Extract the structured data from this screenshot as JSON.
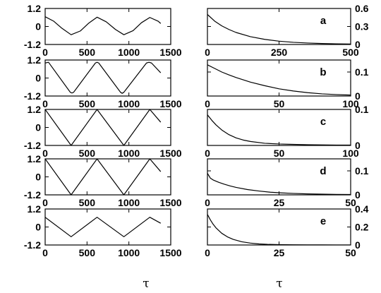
{
  "chart_data": {
    "type": "line",
    "x_axis_titles": [
      "τ",
      "τ"
    ],
    "panels": [
      {
        "id": "left-a",
        "row": 0,
        "col": 0,
        "x_range": [
          0,
          1500
        ],
        "y_range": [
          -1.2,
          1.2
        ],
        "x_ticks": [
          "0",
          "500",
          "1000",
          "1500"
        ],
        "y_ticks": [
          "1.2",
          "0",
          "-1.2"
        ],
        "y_axis_side": "left",
        "series": [
          {
            "x": [
              0,
              100,
              200,
              310,
              420,
              520,
              620,
              730,
              840,
              940,
              1050,
              1150,
              1250,
              1350,
              1380
            ],
            "y": [
              0.65,
              0.36,
              -0.12,
              -0.55,
              -0.3,
              0.22,
              0.62,
              0.31,
              -0.2,
              -0.55,
              -0.28,
              0.25,
              0.6,
              0.35,
              0.2
            ]
          }
        ]
      },
      {
        "id": "right-a",
        "row": 0,
        "col": 1,
        "letter": "a",
        "x_range": [
          0,
          500
        ],
        "y_range": [
          0,
          0.6
        ],
        "x_ticks": [
          "0",
          "250",
          "500"
        ],
        "y_ticks": [
          "0.6",
          "0.3",
          "0"
        ],
        "y_axis_side": "right",
        "series": [
          {
            "x": [
              0,
              25,
              50,
              75,
              100,
              150,
              200,
              250,
              300,
              350,
              400,
              450,
              500
            ],
            "y": [
              0.5,
              0.39,
              0.31,
              0.25,
              0.2,
              0.13,
              0.085,
              0.055,
              0.036,
              0.024,
              0.016,
              0.011,
              0.008
            ]
          }
        ]
      },
      {
        "id": "left-b",
        "row": 1,
        "col": 0,
        "x_range": [
          0,
          1500
        ],
        "y_range": [
          -1.2,
          1.2
        ],
        "x_ticks": [
          "0",
          "500",
          "1000",
          "1500"
        ],
        "y_ticks": [
          "1.2",
          "0",
          "-1.2"
        ],
        "y_axis_side": "left",
        "series": [
          {
            "x": [
              0,
              40,
              300,
              320,
              340,
              600,
              620,
              640,
              900,
              920,
              940,
              1210,
              1240,
              1270,
              1380
            ],
            "y": [
              1.0,
              1.05,
              -0.95,
              -1.0,
              -0.95,
              1.0,
              1.05,
              1.0,
              -0.95,
              -1.02,
              -0.95,
              1.0,
              1.05,
              1.0,
              0.35
            ]
          }
        ]
      },
      {
        "id": "right-b",
        "row": 1,
        "col": 1,
        "letter": "b",
        "x_range": [
          0,
          100
        ],
        "y_range": [
          0,
          0.15
        ],
        "x_ticks": [
          "0",
          "50",
          "100"
        ],
        "y_ticks": [
          "0.1",
          "0"
        ],
        "y_axis_side": "right",
        "series": [
          {
            "x": [
              0,
              5,
              10,
              15,
              20,
              30,
              40,
              50,
              60,
              70,
              80,
              90,
              100
            ],
            "y": [
              0.13,
              0.115,
              0.1,
              0.088,
              0.077,
              0.058,
              0.043,
              0.03,
              0.021,
              0.014,
              0.009,
              0.006,
              0.004
            ]
          }
        ]
      },
      {
        "id": "left-c",
        "row": 2,
        "col": 0,
        "x_range": [
          0,
          1500
        ],
        "y_range": [
          -1.2,
          1.2
        ],
        "x_ticks": [
          "0",
          "500",
          "1000",
          "1500"
        ],
        "y_ticks": [
          "1.2",
          "0",
          "-1.2"
        ],
        "y_axis_side": "left",
        "series": [
          {
            "x": [
              0,
              310,
              620,
              940,
              1250,
              1380
            ],
            "y": [
              1.2,
              -1.2,
              1.2,
              -1.2,
              1.2,
              0.35
            ]
          }
        ]
      },
      {
        "id": "right-c",
        "row": 2,
        "col": 1,
        "letter": "c",
        "x_range": [
          0,
          100
        ],
        "y_range": [
          0,
          0.1
        ],
        "x_ticks": [
          "0",
          "50",
          "100"
        ],
        "y_ticks": [
          "0.1",
          "0"
        ],
        "y_axis_side": "right",
        "series": [
          {
            "x": [
              0,
              3,
              6,
              10,
              15,
              20,
              25,
              30,
              40,
              50,
              60,
              70,
              80,
              90,
              100
            ],
            "y": [
              0.085,
              0.07,
              0.057,
              0.043,
              0.03,
              0.021,
              0.015,
              0.011,
              0.006,
              0.004,
              0.003,
              0.002,
              0.0015,
              0.001,
              0.001
            ]
          }
        ]
      },
      {
        "id": "left-d",
        "row": 3,
        "col": 0,
        "x_range": [
          0,
          1500
        ],
        "y_range": [
          -1.2,
          1.2
        ],
        "x_ticks": [
          "0",
          "500",
          "1000",
          "1500"
        ],
        "y_ticks": [
          "1.2",
          "0",
          "-1.2"
        ],
        "y_axis_side": "left",
        "series": [
          {
            "x": [
              0,
              310,
              620,
              940,
              1250,
              1380
            ],
            "y": [
              1.2,
              -1.2,
              1.2,
              -1.2,
              1.2,
              0.35
            ]
          }
        ]
      },
      {
        "id": "right-d",
        "row": 3,
        "col": 1,
        "letter": "d",
        "x_range": [
          0,
          50
        ],
        "y_range": [
          0,
          0.15
        ],
        "x_ticks": [
          "0",
          "25",
          "50"
        ],
        "y_ticks": [
          "0.1",
          "0"
        ],
        "y_axis_side": "right",
        "series": [
          {
            "x": [
              0,
              1,
              2,
              4,
              6,
              8,
              10,
              14,
              18,
              22,
              26,
              30,
              35,
              40,
              45,
              50
            ],
            "y": [
              0.09,
              0.07,
              0.062,
              0.052,
              0.044,
              0.037,
              0.031,
              0.022,
              0.016,
              0.011,
              0.008,
              0.006,
              0.004,
              0.003,
              0.002,
              0.0015
            ]
          }
        ]
      },
      {
        "id": "left-e",
        "row": 4,
        "col": 0,
        "x_range": [
          0,
          1500
        ],
        "y_range": [
          -1.2,
          1.2
        ],
        "x_ticks": [
          "0",
          "500",
          "1000",
          "1500"
        ],
        "y_ticks": [
          "1.2",
          "0",
          "-1.2"
        ],
        "y_axis_side": "left",
        "series": [
          {
            "x": [
              0,
              310,
              620,
              940,
              1250,
              1380
            ],
            "y": [
              0.65,
              -0.65,
              0.65,
              -0.65,
              0.65,
              0.25
            ]
          }
        ]
      },
      {
        "id": "right-e",
        "row": 4,
        "col": 1,
        "letter": "e",
        "x_range": [
          0,
          50
        ],
        "y_range": [
          0,
          0.4
        ],
        "x_ticks": [
          "0",
          "25",
          "50"
        ],
        "y_ticks": [
          "0.4",
          "0.2",
          "0"
        ],
        "y_axis_side": "right",
        "series": [
          {
            "x": [
              0,
              1,
              2,
              3,
              5,
              7,
              9,
              12,
              15,
              18,
              21,
              25,
              30,
              35,
              40,
              45,
              50
            ],
            "y": [
              0.34,
              0.28,
              0.23,
              0.19,
              0.13,
              0.09,
              0.062,
              0.036,
              0.021,
              0.012,
              0.007,
              0.004,
              0.002,
              0.001,
              0.001,
              0.0005,
              0.0005
            ]
          }
        ]
      }
    ]
  }
}
